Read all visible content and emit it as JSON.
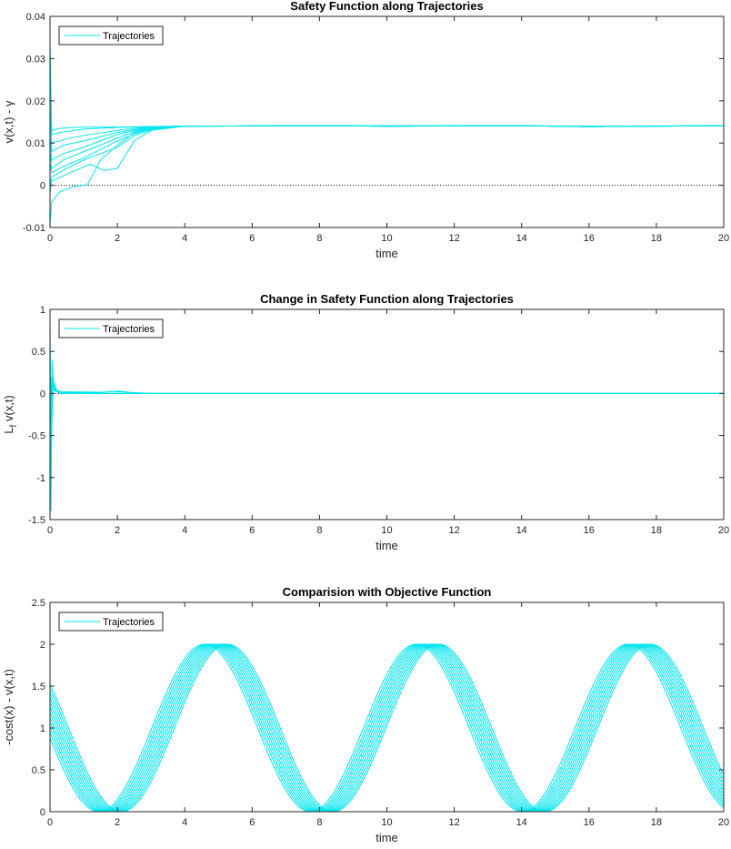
{
  "chart_data": [
    {
      "type": "line",
      "title": "Safety Function along Trajectories",
      "xlabel": "time",
      "ylabel": "v(x,t) - γ",
      "xlim": [
        0,
        20
      ],
      "ylim": [
        -0.01,
        0.04
      ],
      "xticks": [
        0,
        2,
        4,
        6,
        8,
        10,
        12,
        14,
        16,
        18,
        20
      ],
      "yticks": [
        -0.01,
        0,
        0.01,
        0.02,
        0.03,
        0.04
      ],
      "ytick_labels": [
        "-0.01",
        "0",
        "0.01",
        "0.02",
        "0.03",
        "0.04"
      ],
      "legend": {
        "entries": [
          "Trajectories"
        ],
        "position": "top-left"
      },
      "series_color": "#00e5ee",
      "reference_line": {
        "y": 0,
        "style": "dotted",
        "color": "#000000"
      },
      "series": [
        {
          "x": [
            0,
            0.05,
            0.3,
            1,
            2,
            3,
            4,
            8,
            10,
            14,
            16,
            20
          ],
          "y": [
            0.034,
            0.013,
            0.0135,
            0.0138,
            0.0138,
            0.0139,
            0.014,
            0.0141,
            0.014,
            0.0141,
            0.0139,
            0.0141
          ]
        },
        {
          "x": [
            0,
            0.05,
            0.3,
            1,
            2,
            3,
            4,
            8,
            10,
            14,
            16,
            20
          ],
          "y": [
            0.03,
            0.012,
            0.0125,
            0.0133,
            0.0137,
            0.0139,
            0.014,
            0.0141,
            0.0141,
            0.0141,
            0.014,
            0.0141
          ]
        },
        {
          "x": [
            0,
            0.05,
            0.4,
            1,
            1.5,
            2,
            2.5,
            3,
            4,
            8,
            10,
            14,
            16,
            20
          ],
          "y": [
            0.02,
            0.008,
            0.0095,
            0.0105,
            0.0115,
            0.0125,
            0.0132,
            0.0137,
            0.014,
            0.0141,
            0.014,
            0.0141,
            0.0139,
            0.0141
          ]
        },
        {
          "x": [
            0,
            0.05,
            0.4,
            1,
            1.5,
            2,
            2.5,
            3,
            4,
            8,
            10,
            14,
            16,
            20
          ],
          "y": [
            0.012,
            0.006,
            0.0075,
            0.009,
            0.0105,
            0.012,
            0.013,
            0.0136,
            0.014,
            0.0141,
            0.014,
            0.0141,
            0.0139,
            0.0141
          ]
        },
        {
          "x": [
            0,
            0.05,
            0.4,
            1,
            1.5,
            2,
            2.5,
            3,
            4,
            8,
            10,
            14,
            16,
            20
          ],
          "y": [
            0.008,
            0.004,
            0.006,
            0.008,
            0.0095,
            0.0112,
            0.0127,
            0.0135,
            0.014,
            0.0141,
            0.014,
            0.0141,
            0.0139,
            0.0141
          ]
        },
        {
          "x": [
            0,
            0.05,
            0.4,
            1,
            1.5,
            2,
            2.5,
            3,
            4,
            8,
            10,
            14,
            16,
            20
          ],
          "y": [
            0.005,
            0.003,
            0.0045,
            0.0065,
            0.0085,
            0.0105,
            0.0122,
            0.0133,
            0.014,
            0.0141,
            0.014,
            0.0141,
            0.0139,
            0.0141
          ]
        },
        {
          "x": [
            0,
            0.05,
            0.5,
            1,
            1.5,
            2,
            2.5,
            3,
            4,
            8,
            10,
            14,
            16,
            20
          ],
          "y": [
            0.0,
            0.002,
            0.004,
            0.006,
            0.0075,
            0.009,
            0.0118,
            0.0131,
            0.014,
            0.0141,
            0.014,
            0.0141,
            0.0139,
            0.0141
          ]
        },
        {
          "x": [
            0,
            0.05,
            0.6,
            1.2,
            1.6,
            2,
            2.5,
            3,
            4,
            8,
            10,
            14,
            16,
            20
          ],
          "y": [
            -0.002,
            0.001,
            0.003,
            0.005,
            0.0035,
            0.004,
            0.0105,
            0.013,
            0.014,
            0.0141,
            0.014,
            0.0141,
            0.0139,
            0.0141
          ]
        },
        {
          "x": [
            0,
            0.05,
            0.3,
            0.7,
            1,
            1.1,
            1.5,
            2,
            2.5,
            3,
            4,
            8,
            10,
            14,
            16,
            20
          ],
          "y": [
            -0.009,
            -0.004,
            -0.0015,
            -0.0003,
            0.0,
            0.0,
            0.006,
            0.0095,
            0.0125,
            0.0135,
            0.014,
            0.0141,
            0.014,
            0.0141,
            0.0139,
            0.0141
          ]
        },
        {
          "x": [
            0,
            0.05,
            0.5,
            1,
            1.5,
            2,
            2.5,
            3,
            4,
            8,
            10,
            14,
            16,
            20
          ],
          "y": [
            0.016,
            0.01,
            0.011,
            0.0118,
            0.0124,
            0.013,
            0.0135,
            0.0138,
            0.014,
            0.0141,
            0.014,
            0.0141,
            0.0139,
            0.0141
          ]
        }
      ]
    },
    {
      "type": "line",
      "title": "Change in Safety Function along Trajectories",
      "xlabel": "time",
      "ylabel": "L_f v(x,t)",
      "xlim": [
        0,
        20
      ],
      "ylim": [
        -1.5,
        1
      ],
      "xticks": [
        0,
        2,
        4,
        6,
        8,
        10,
        12,
        14,
        16,
        18,
        20
      ],
      "yticks": [
        -1.5,
        -1,
        -0.5,
        0,
        0.5,
        1
      ],
      "ytick_labels": [
        "-1.5",
        "-1",
        "-0.5",
        "0",
        "0.5",
        "1"
      ],
      "legend": {
        "entries": [
          "Trajectories"
        ],
        "position": "top-left"
      },
      "series_color": "#00e5ee",
      "reference_line": {
        "y": 0,
        "style": "dotted",
        "color": "#000000"
      },
      "series": [
        {
          "x": [
            0,
            0.03,
            0.06,
            0.12,
            0.3,
            1,
            20
          ],
          "y": [
            0.9,
            -1.4,
            0.4,
            0.05,
            0.0,
            0.0,
            0.0
          ]
        },
        {
          "x": [
            0,
            0.03,
            0.08,
            0.15,
            0.3,
            1,
            20
          ],
          "y": [
            0.6,
            -0.9,
            0.2,
            0.03,
            0.01,
            0.0,
            0.0
          ]
        },
        {
          "x": [
            0,
            0.04,
            0.1,
            0.2,
            0.4,
            1,
            20
          ],
          "y": [
            0.3,
            -0.5,
            0.15,
            0.04,
            0.01,
            0.0,
            0.0
          ]
        },
        {
          "x": [
            0,
            0.05,
            0.1,
            0.2,
            0.5,
            1.5,
            1.8,
            2.1,
            2.5,
            3,
            20
          ],
          "y": [
            0.1,
            -0.2,
            0.08,
            0.03,
            0.01,
            0.01,
            0.025,
            0.02,
            0.008,
            0.0,
            0.0
          ]
        },
        {
          "x": [
            0,
            0.05,
            0.12,
            0.3,
            1.6,
            2,
            2.4,
            3,
            20
          ],
          "y": [
            -0.3,
            0.2,
            0.05,
            0.02,
            0.015,
            0.03,
            0.012,
            0.0,
            0.0
          ]
        }
      ]
    },
    {
      "type": "line",
      "title": "Comparision with Objective Function",
      "xlabel": "time",
      "ylabel": "-cost(x) - v(x,t)",
      "xlim": [
        0,
        20
      ],
      "ylim": [
        0,
        2.5
      ],
      "xticks": [
        0,
        2,
        4,
        6,
        8,
        10,
        12,
        14,
        16,
        18,
        20
      ],
      "yticks": [
        0,
        0.5,
        1,
        1.5,
        2,
        2.5
      ],
      "ytick_labels": [
        "0",
        "0.5",
        "1",
        "1.5",
        "2",
        "2.5"
      ],
      "legend": {
        "entries": [
          "Trajectories"
        ],
        "position": "top-left"
      },
      "series_color": "#00e5ee",
      "reference_line": {
        "y": 0,
        "style": "dotted",
        "color": "#000000"
      },
      "model": {
        "form": "1 - cos(t - phase)",
        "period": 6.283,
        "phases": [
          1.45,
          1.52,
          1.58,
          1.64,
          1.7,
          1.76,
          1.82,
          1.88,
          1.94,
          2.0,
          2.06,
          2.12
        ]
      }
    }
  ]
}
